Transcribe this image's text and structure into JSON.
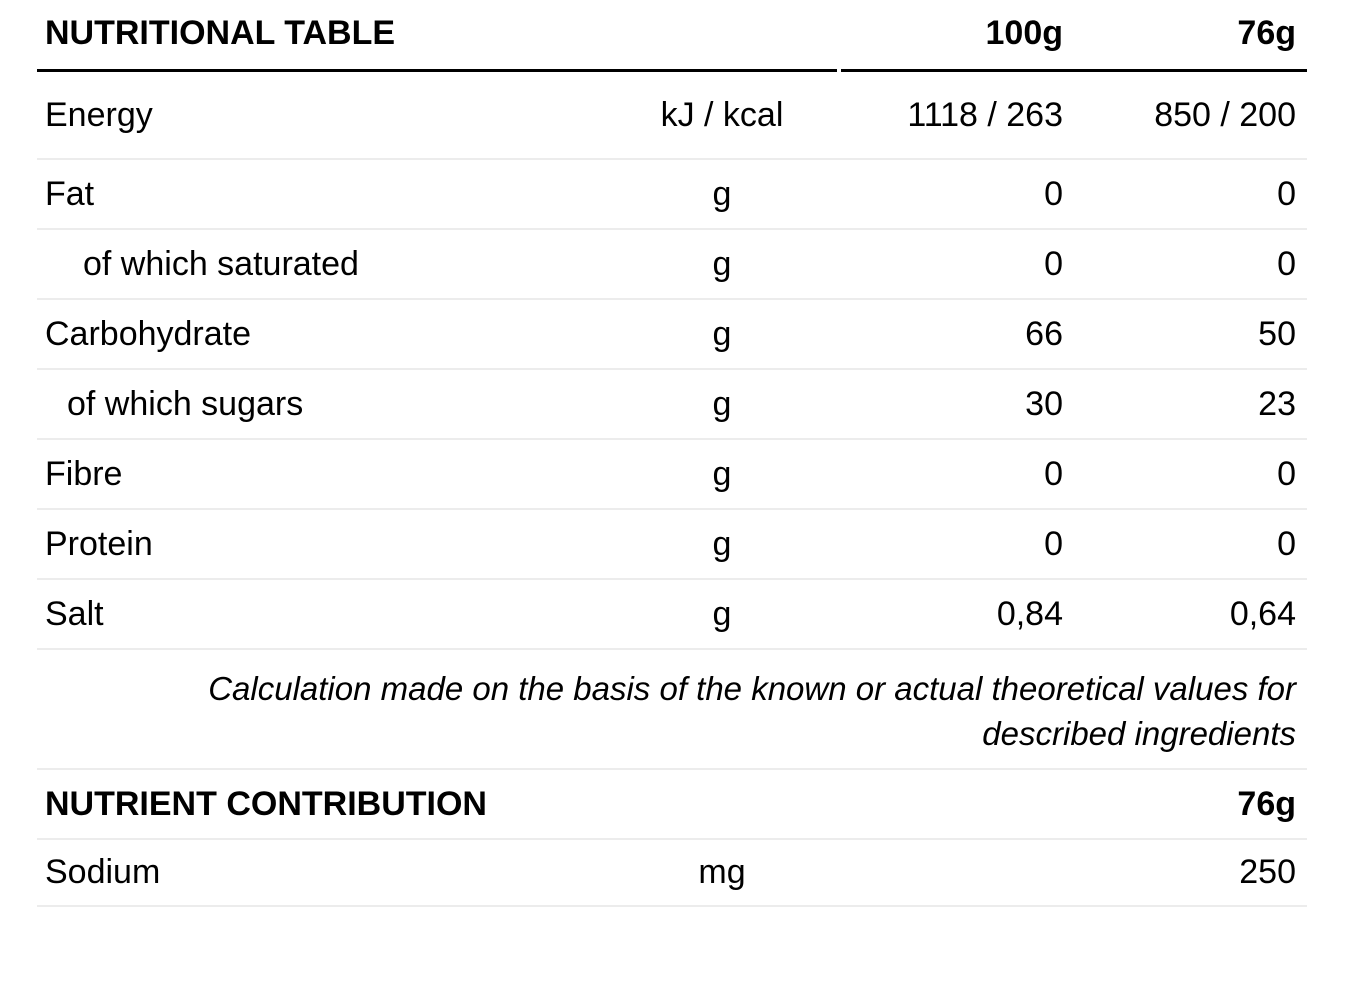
{
  "colors": {
    "background": "#ffffff",
    "text": "#000000",
    "heavy_rule": "#000000",
    "row_divider": "#ececec"
  },
  "nutritional_table": {
    "title": "NUTRITIONAL TABLE",
    "columns": {
      "per_100g": "100g",
      "per_76g": "76g"
    },
    "rows": [
      {
        "label": "Energy",
        "unit": "kJ / kcal",
        "per_100g": "1118 / 263",
        "per_76g": "850 / 200"
      },
      {
        "label": "Fat",
        "unit": "g",
        "per_100g": "0",
        "per_76g": "0"
      },
      {
        "label": "of which saturated",
        "unit": "g",
        "per_100g": "0",
        "per_76g": "0"
      },
      {
        "label": "Carbohydrate",
        "unit": "g",
        "per_100g": "66",
        "per_76g": "50"
      },
      {
        "label": "of which sugars",
        "unit": "g",
        "per_100g": "30",
        "per_76g": "23"
      },
      {
        "label": "Fibre",
        "unit": "g",
        "per_100g": "0",
        "per_76g": "0"
      },
      {
        "label": "Protein",
        "unit": "g",
        "per_100g": "0",
        "per_76g": "0"
      },
      {
        "label": "Salt",
        "unit": "g",
        "per_100g": "0,84",
        "per_76g": "0,64"
      }
    ],
    "note": {
      "line1": "Calculation made on the basis of the known or actual theoretical values for",
      "line2": "described ingredients"
    }
  },
  "nutrient_contribution": {
    "title": "NUTRIENT CONTRIBUTION",
    "column_76g": "76g",
    "rows": [
      {
        "label": "Sodium",
        "unit": "mg",
        "per_76g": "250"
      }
    ]
  }
}
